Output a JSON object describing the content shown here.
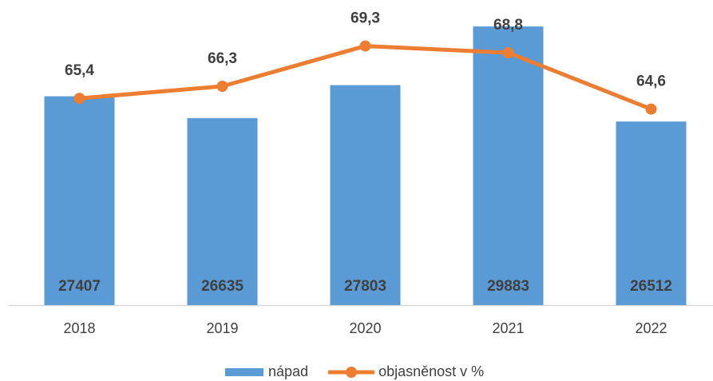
{
  "chart_data": {
    "type": "bar",
    "categories": [
      "2018",
      "2019",
      "2020",
      "2021",
      "2022"
    ],
    "series": [
      {
        "name": "nápad",
        "type": "bar",
        "color": "#5b9bd5",
        "values": [
          27407,
          26635,
          27803,
          29883,
          26512
        ]
      },
      {
        "name": "objasněnost v %",
        "type": "line",
        "axis": "y2",
        "color": "#ed7d31",
        "values": [
          65.4,
          66.3,
          69.3,
          68.8,
          64.6
        ],
        "value_labels": [
          "65,4",
          "66,3",
          "69,3",
          "68,8",
          "64,6"
        ]
      }
    ],
    "ylim": [
      20000,
      30000
    ],
    "y2lim": [
      50,
      71
    ],
    "grid": false,
    "legend": "bottom"
  }
}
